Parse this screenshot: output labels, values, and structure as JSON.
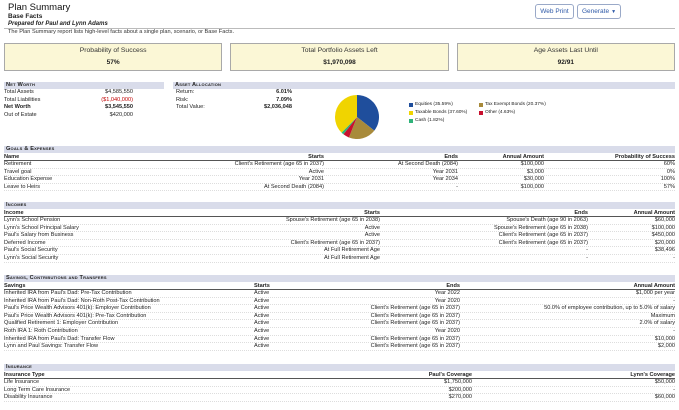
{
  "header": {
    "title": "Plan Summary",
    "subtitle": "Base Facts",
    "prepared_for": "Prepared for Paul and Lynn Adams",
    "description": "The Plan Summary report lists high-level facts about a single plan, scenario, or Base Facts.",
    "web_print_label": "Web Print",
    "generate_label": "Generate"
  },
  "summary_boxes": [
    {
      "label": "Probability of Success",
      "value": "57%"
    },
    {
      "label": "Total Portfolio Assets Left",
      "value": "$1,970,098"
    },
    {
      "label": "Age Assets Last Until",
      "value": "92/91"
    }
  ],
  "net_worth": {
    "heading": "Net Worth",
    "rows": [
      {
        "label": "Total Assets",
        "value": "$4,585,550"
      },
      {
        "label": "Total Liabilities",
        "value": "($1,040,000)"
      },
      {
        "label": "Net Worth",
        "value": "$3,545,550"
      },
      {
        "label": "Out of Estate",
        "value": "$420,000"
      }
    ]
  },
  "asset_allocation": {
    "heading": "Asset Allocation",
    "rows": [
      {
        "label": "Return:",
        "value": "6.01%"
      },
      {
        "label": "Risk:",
        "value": "7.09%"
      },
      {
        "label": "Total Value:",
        "value": "$2,036,048"
      }
    ],
    "legend": [
      {
        "label": "Equities (35.59%)",
        "color": "#1f4e9c",
        "pct": 35.59
      },
      {
        "label": "Tax Exempt Bonds (20.37%)",
        "color": "#a88a3a",
        "pct": 20.37
      },
      {
        "label": "Taxable Bonds (37.60%)",
        "color": "#f0d400",
        "pct": 37.6
      },
      {
        "label": "Other (4.63%)",
        "color": "#c8102e",
        "pct": 4.63
      },
      {
        "label": "Cash (1.82%)",
        "color": "#2fb37a",
        "pct": 1.82
      }
    ]
  },
  "goals": {
    "heading": "Goals & Expenses",
    "columns": [
      "Name",
      "Starts",
      "Ends",
      "Annual Amount",
      "Probability of Success"
    ],
    "rows": [
      [
        "Retirement",
        "Client's Retirement (age 65 in 2037)",
        "At Second Death (2084)",
        "$100,000",
        "60%"
      ],
      [
        "Travel goal",
        "Active",
        "Year 2031",
        "$3,000",
        "0%"
      ],
      [
        "Education Expense",
        "Year 2031",
        "Year 2034",
        "$30,000",
        "100%"
      ],
      [
        "Leave to Heirs",
        "At Second Death (2084)",
        "-",
        "$100,000",
        "57%"
      ]
    ]
  },
  "incomes": {
    "heading": "Incomes",
    "columns": [
      "Income",
      "Starts",
      "Ends",
      "Annual Amount"
    ],
    "rows": [
      [
        "Lynn's School Pension",
        "Spouse's Retirement (age 65 in 2038)",
        "Spouse's Death (age 90 in 2063)",
        "$60,000"
      ],
      [
        "Lynn's School Principal Salary",
        "Active",
        "Spouse's Retirement (age 65 in 2038)",
        "$100,000"
      ],
      [
        "Paul's Salary from Business",
        "Active",
        "Client's Retirement (age 65 in 2037)",
        "$450,000"
      ],
      [
        "Deferred Income",
        "Client's Retirement (age 65 in 2037)",
        "Client's Retirement (age 65 in 2037)",
        "$20,000"
      ],
      [
        "Paul's Social Security",
        "At Full Retirement Age",
        "-",
        "$38,496"
      ],
      [
        "Lynn's Social Security",
        "At Full Retirement Age",
        "-",
        "-"
      ]
    ]
  },
  "savings": {
    "heading": "Savings, Contributions and Transfers",
    "columns": [
      "Savings",
      "Starts",
      "Ends",
      "Annual Amount"
    ],
    "rows": [
      [
        "Inherited IRA from Paul's Dad: Pre-Tax Contribution",
        "Active",
        "Year 2022",
        "$1,000 per year"
      ],
      [
        "Inherited IRA from Paul's Dad: Non-Roth Post-Tax Contribution",
        "Active",
        "Year 2020",
        "-"
      ],
      [
        "Paul's Price Wealth Advisors 401(k): Employer Contribution",
        "Active",
        "Client's Retirement (age 65 in 2037)",
        "50.0% of employee contribution, up to 5.0% of salary"
      ],
      [
        "Paul's Price Wealth Advisors 401(k): Pre-Tax Contribution",
        "Active",
        "Client's Retirement (age 65 in 2037)",
        "Maximum"
      ],
      [
        "Qualified Retirement 1: Employer Contribution",
        "Active",
        "Client's Retirement (age 65 in 2037)",
        "2.0% of salary"
      ],
      [
        "Roth IRA 1: Roth Contribution",
        "Active",
        "Year 2020",
        "-"
      ],
      [
        "Inherited IRA from Paul's Dad: Transfer Flow",
        "Active",
        "Client's Retirement (age 65 in 2037)",
        "$10,000"
      ],
      [
        "Lynn and Paul Savings: Transfer Flow",
        "Active",
        "Client's Retirement (age 65 in 2037)",
        "$2,000"
      ]
    ]
  },
  "insurance": {
    "heading": "Insurance",
    "columns": [
      "Insurance Type",
      "Paul's Coverage",
      "Lynn's Coverage"
    ],
    "rows": [
      [
        "Life Insurance",
        "$1,750,000",
        "$50,000"
      ],
      [
        "Long Term Care Insurance",
        "$200,000",
        "-"
      ],
      [
        "Disability Insurance",
        "$270,000",
        "$60,000"
      ]
    ]
  }
}
